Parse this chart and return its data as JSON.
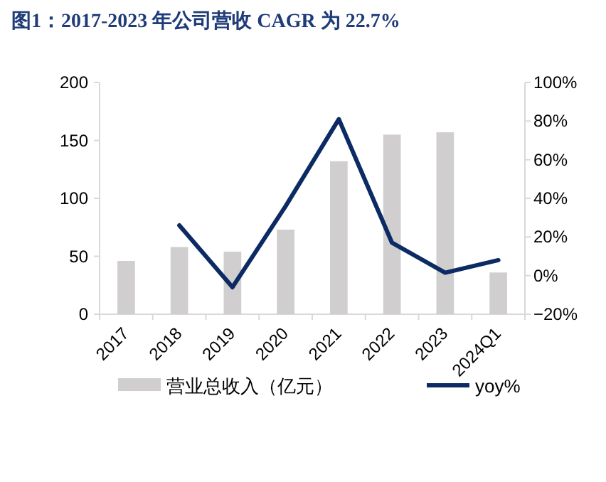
{
  "chart_data": {
    "type": "bar",
    "title": "图1：2017-2023 年公司营收 CAGR 为 22.7%",
    "categories": [
      "2017",
      "2018",
      "2019",
      "2020",
      "2021",
      "2022",
      "2023",
      "2024Q1"
    ],
    "series": [
      {
        "name": "营业总收入（亿元）",
        "color": "#d0cece",
        "values": [
          46,
          58,
          54,
          73,
          132,
          155,
          157,
          36
        ]
      },
      {
        "name": "yoy%",
        "type": "line",
        "axis": "y2",
        "color": "#0c2a63",
        "values": [
          null,
          26,
          -6,
          36,
          81,
          17,
          1.5,
          8
        ]
      }
    ],
    "ylim": [
      0,
      200
    ],
    "yticks": [
      0,
      50,
      100,
      150,
      200
    ],
    "y2lim": [
      -20,
      100
    ],
    "y2ticks": [
      {
        "value": -20,
        "label": "−20%"
      },
      {
        "value": 0,
        "label": "0%"
      },
      {
        "value": 20,
        "label": "20%"
      },
      {
        "value": 40,
        "label": "40%"
      },
      {
        "value": 60,
        "label": "60%"
      },
      {
        "value": 80,
        "label": "80%"
      },
      {
        "value": 100,
        "label": "100%"
      }
    ],
    "grid": false,
    "legend": "bottom",
    "marker": "none",
    "line_style": "solid"
  }
}
